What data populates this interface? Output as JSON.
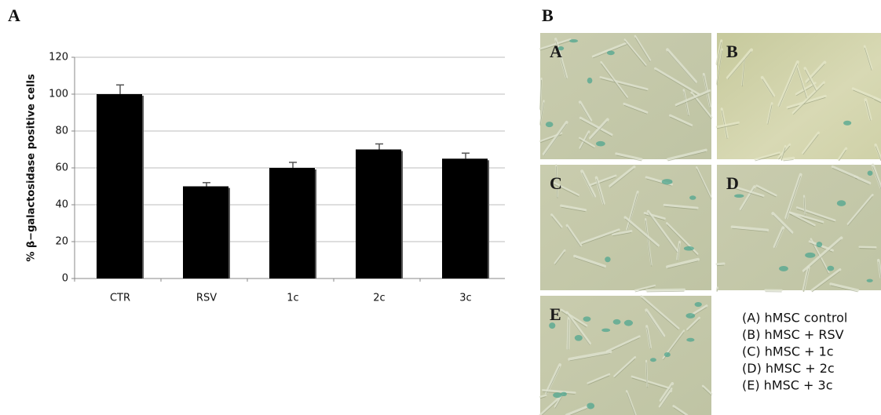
{
  "chart_data": {
    "type": "bar",
    "y_label": "% β−galactosidase positive cells",
    "categories": [
      "CTR",
      "RSV",
      "1c",
      "2c",
      "3c"
    ],
    "values": [
      100,
      50,
      60,
      70,
      65
    ],
    "errors": [
      5,
      2,
      3,
      3,
      3
    ],
    "color": "#000000",
    "ylim": [
      0,
      120
    ],
    "yticks": [
      0,
      20,
      40,
      60,
      80,
      100,
      120
    ],
    "grid": true
  },
  "panel_labels": [
    "A",
    "B"
  ],
  "micrographs": [
    "A",
    "B",
    "C",
    "D",
    "E"
  ],
  "legend": [
    "(A) hMSC control",
    "(B) hMSC + RSV",
    "(C) hMSC + 1c",
    "(D) hMSC + 2c",
    "(E) hMSC + 3c"
  ]
}
